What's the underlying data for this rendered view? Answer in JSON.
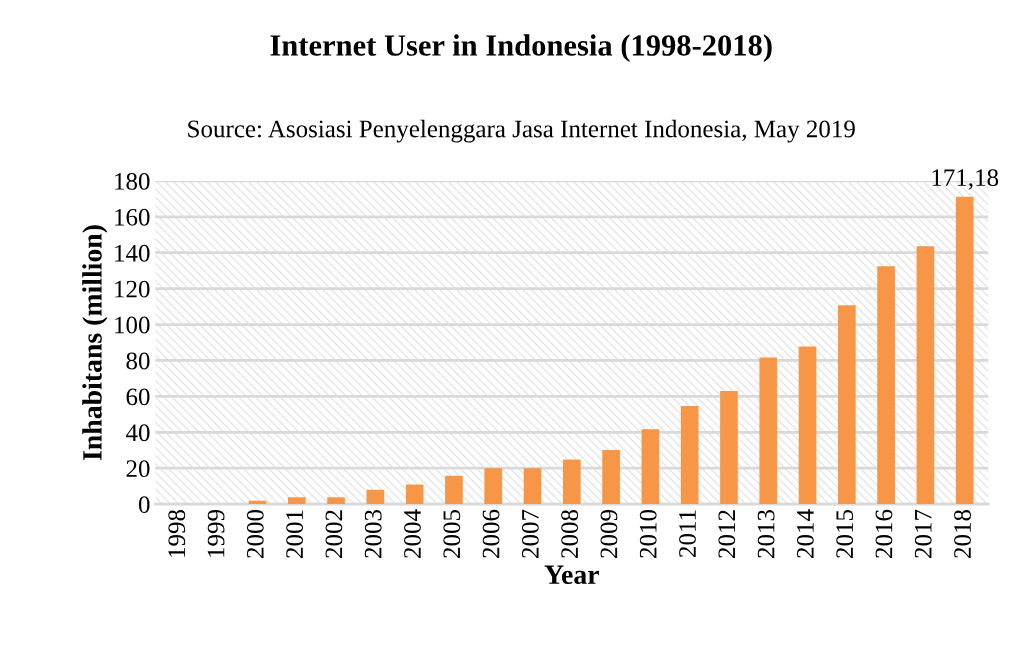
{
  "chart_data": {
    "type": "bar",
    "title": "Internet User in Indonesia (1998-2018)",
    "subtitle": "Source: Asosiasi Penyelenggara Jasa Internet Indonesia, May 2019",
    "xlabel": "Year",
    "ylabel": "Inhabitans (million)",
    "categories": [
      "1998",
      "1999",
      "2000",
      "2001",
      "2002",
      "2003",
      "2004",
      "2005",
      "2006",
      "2007",
      "2008",
      "2009",
      "2010",
      "2011",
      "2012",
      "2013",
      "2014",
      "2015",
      "2016",
      "2017",
      "2018"
    ],
    "values": [
      0,
      0,
      1.9,
      3.8,
      3.8,
      8,
      10.9,
      15.8,
      20,
      20,
      24.8,
      30.2,
      41.7,
      54.7,
      63,
      81.7,
      87.8,
      110.7,
      132.5,
      143.6,
      171.18
    ],
    "value_labels": [
      null,
      null,
      null,
      null,
      null,
      null,
      null,
      null,
      null,
      null,
      null,
      null,
      null,
      null,
      null,
      null,
      null,
      null,
      null,
      null,
      "171,18"
    ],
    "color": "#f79646",
    "ylim": [
      0,
      180
    ],
    "yticks": [
      0,
      20,
      40,
      60,
      80,
      100,
      120,
      140,
      160,
      180
    ],
    "grid": "y"
  }
}
